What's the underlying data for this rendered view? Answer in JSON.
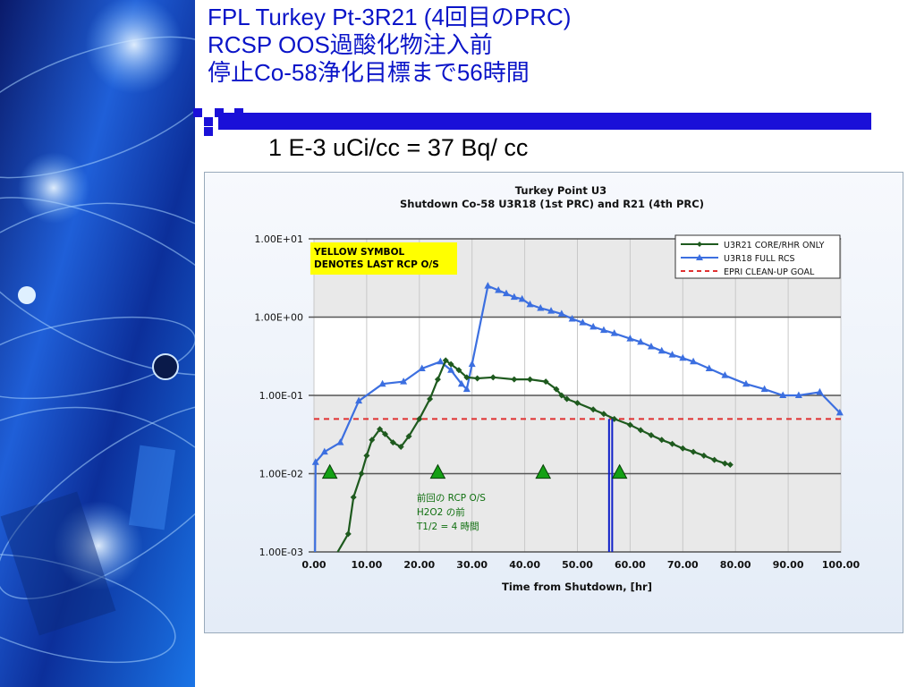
{
  "slide": {
    "title_lines": [
      "FPL Turkey Pt-3R21 (4回目のPRC)",
      "RCSP OOS過酸化物注入前",
      "停止Co-58浄化目標まで56時間"
    ],
    "subtitle": "1 E-3 uCi/cc = 37 Bq/ cc"
  },
  "chart_data": {
    "type": "line",
    "title": "Turkey Point U3",
    "subtitle": "Shutdown Co-58 U3R18 (1st PRC) and R21 (4th PRC)",
    "xlabel": "Time from Shutdown, [hr]",
    "ylabel": "",
    "xlim": [
      0,
      100
    ],
    "ylim": [
      0.001,
      10
    ],
    "yscale": "log",
    "x_ticks": [
      0,
      10,
      20,
      30,
      40,
      50,
      60,
      70,
      80,
      90,
      100
    ],
    "x_tick_labels": [
      "0.00",
      "10.00",
      "20.00",
      "30.00",
      "40.00",
      "50.00",
      "60.00",
      "70.00",
      "80.00",
      "90.00",
      "100.00"
    ],
    "y_ticks": [
      0.001,
      0.01,
      0.1,
      1,
      10
    ],
    "y_tick_labels": [
      "1.00E-03",
      "1.00E-02",
      "1.00E-01",
      "1.00E+00",
      "1.00E+01"
    ],
    "grid": true,
    "legend_position": "top-right",
    "series": [
      {
        "name": "U3R21 CORE/RHR ONLY",
        "color": "#1e5a1e",
        "marker": "diamond",
        "x": [
          4.5,
          6.5,
          7.5,
          9,
          10,
          11,
          12.5,
          13.5,
          15,
          16.5,
          18,
          20,
          22,
          23.5,
          25,
          26,
          27.5,
          29,
          31,
          34,
          38,
          41,
          44,
          46,
          47,
          48,
          50,
          53,
          55,
          57,
          60,
          62,
          64,
          66,
          68,
          70,
          72,
          74,
          76,
          78,
          79
        ],
        "y": [
          0.0008,
          0.0017,
          0.005,
          0.01,
          0.017,
          0.027,
          0.037,
          0.032,
          0.025,
          0.022,
          0.03,
          0.05,
          0.09,
          0.16,
          0.28,
          0.25,
          0.21,
          0.17,
          0.165,
          0.17,
          0.16,
          0.16,
          0.15,
          0.12,
          0.1,
          0.09,
          0.08,
          0.066,
          0.058,
          0.05,
          0.042,
          0.036,
          0.031,
          0.027,
          0.024,
          0.021,
          0.019,
          0.017,
          0.015,
          0.0135,
          0.013
        ]
      },
      {
        "name": "U3R18 FULL RCS",
        "color": "#3c6fe0",
        "marker": "triangle",
        "x": [
          0.2,
          0.3,
          2,
          5,
          8.5,
          13,
          17,
          20.5,
          24,
          26,
          28,
          29,
          30,
          33,
          35,
          36.5,
          38,
          39.5,
          41,
          43,
          45,
          47,
          49,
          51,
          53,
          55,
          57,
          60,
          62,
          64,
          66,
          68,
          70,
          72,
          75,
          78,
          82,
          85.5,
          89,
          92,
          96,
          99.8
        ],
        "y": [
          0.0006,
          0.014,
          0.019,
          0.025,
          0.085,
          0.14,
          0.15,
          0.22,
          0.27,
          0.21,
          0.14,
          0.12,
          0.25,
          2.5,
          2.2,
          2.0,
          1.8,
          1.7,
          1.45,
          1.3,
          1.2,
          1.1,
          0.95,
          0.85,
          0.75,
          0.68,
          0.62,
          0.53,
          0.48,
          0.42,
          0.37,
          0.33,
          0.3,
          0.27,
          0.22,
          0.18,
          0.14,
          0.12,
          0.1,
          0.1,
          0.11,
          0.06
        ]
      },
      {
        "name": "EPRI CLEAN-UP GOAL",
        "color": "#e03030",
        "marker": "none",
        "dashed": true,
        "x": [
          0,
          100
        ],
        "y": [
          0.05,
          0.05
        ]
      }
    ],
    "vertical_markers": [
      {
        "x": 56,
        "color": "#1020c8"
      },
      {
        "x": 56.6,
        "color": "#1020c8"
      }
    ],
    "last_rcp_triangles": [
      {
        "x": 3,
        "y": 0.0105
      },
      {
        "x": 23.5,
        "y": 0.0105
      },
      {
        "x": 43.5,
        "y": 0.0105
      },
      {
        "x": 58,
        "y": 0.0105
      }
    ],
    "annotations": [
      {
        "text": "YELLOW SYMBOL\nDENOTES LAST RCP O/S",
        "background": "#ffff00",
        "color": "#000000"
      },
      {
        "text": "前回の RCP O/S\nH2O2  の前\nT1/2 = 4 時間",
        "x": 19.5,
        "y": 0.0045,
        "color": "#107010"
      }
    ]
  }
}
